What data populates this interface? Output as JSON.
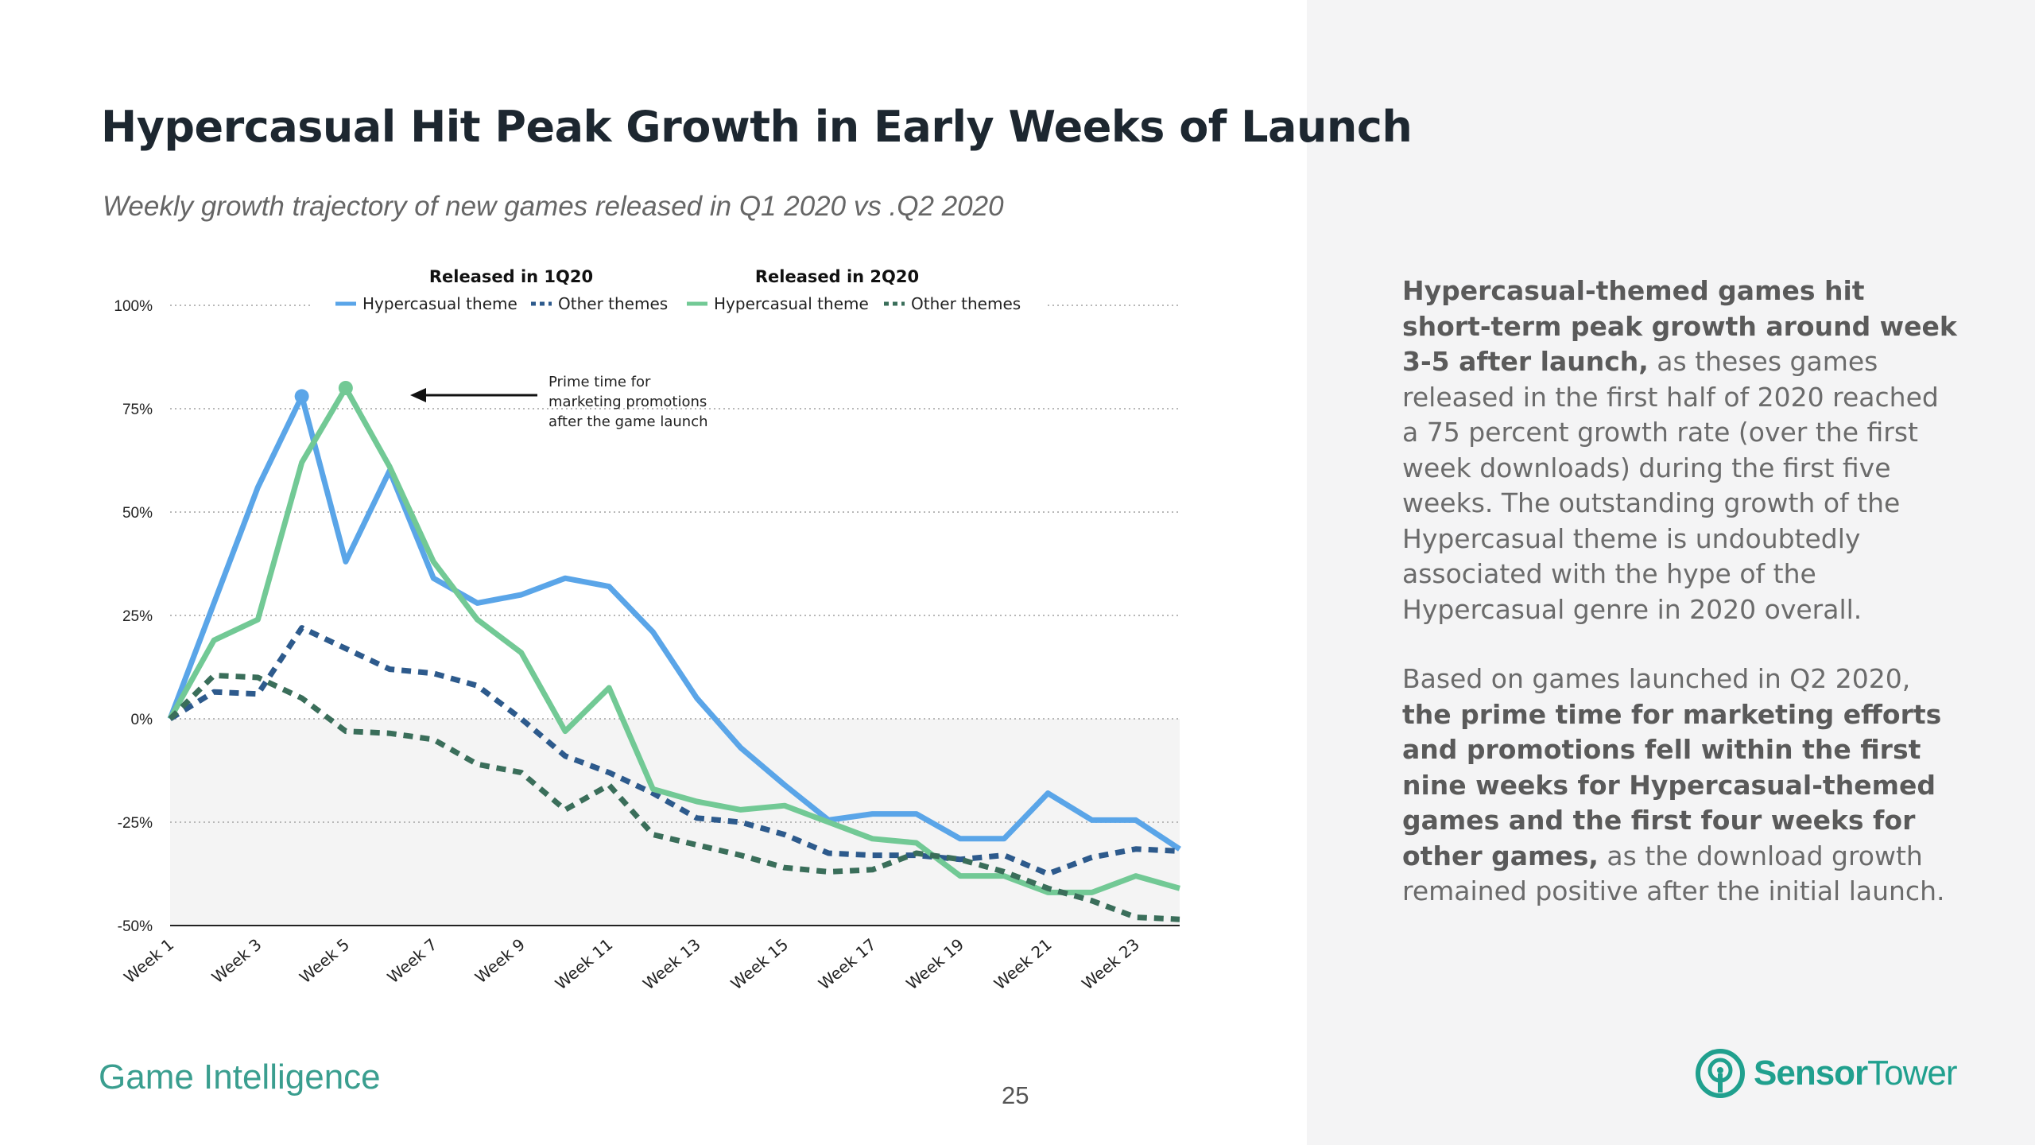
{
  "title": "Hypercasual Hit Peak Growth in Early Weeks of Launch",
  "subtitle": "Weekly growth trajectory of new games released in Q1 2020 vs .Q2 2020",
  "footer": {
    "section": "Game Intelligence",
    "page": "25"
  },
  "logo": {
    "strong": "Sensor",
    "light": "Tower"
  },
  "commentary": {
    "p1_bold": "Hypercasual-themed games hit short-term peak growth around week 3-5 after launch,",
    "p1_rest": " as theses games released in the first half of 2020 reached a 75 percent growth rate (over the first week downloads) during the first five weeks. The outstanding growth of the Hypercasual theme is undoubtedly associated with the hype of the Hypercasual genre in 2020 overall.",
    "p2_start": "Based on games launched in Q2 2020, ",
    "p2_bold": "the prime time for marketing efforts and promotions fell within the first nine weeks for Hypercasual-themed games and the first four weeks for other games,",
    "p2_rest": " as the download growth remained positive after the initial launch."
  },
  "chart_data": {
    "type": "line",
    "x": [
      "Week 1",
      "Week 2",
      "Week 3",
      "Week 4",
      "Week 5",
      "Week 6",
      "Week 7",
      "Week 8",
      "Week 9",
      "Week 10",
      "Week 11",
      "Week 12",
      "Week 13",
      "Week 14",
      "Week 15",
      "Week 16",
      "Week 17",
      "Week 18",
      "Week 19",
      "Week 20",
      "Week 21",
      "Week 22",
      "Week 23",
      "Week 24"
    ],
    "x_tick_labels": [
      "Week 1",
      "Week 3",
      "Week 5",
      "Week 7",
      "Week 9",
      "Week 11",
      "Week 13",
      "Week 15",
      "Week 17",
      "Week 19",
      "Week 21",
      "Week 23"
    ],
    "y_ticks": [
      "100%",
      "75%",
      "50%",
      "25%",
      "0%",
      "-25%",
      "-50%"
    ],
    "ylim": [
      -50,
      100
    ],
    "legend_groups": [
      "Released in 1Q20",
      "Released in 2Q20"
    ],
    "series": [
      {
        "name": "Hypercasual theme",
        "group": "Released in 1Q20",
        "color": "#5aa5e8",
        "style": "solid",
        "peak_week": 4,
        "values": [
          0,
          28,
          56,
          78,
          38,
          60,
          34,
          28,
          30,
          34,
          32,
          21,
          5,
          -7,
          -16,
          -24.5,
          -23,
          -23,
          -29,
          -29,
          -18,
          -24.5,
          -24.5,
          -31.5
        ]
      },
      {
        "name": "Other themes",
        "group": "Released in 1Q20",
        "color": "#2d5a8c",
        "style": "dashed",
        "values": [
          0,
          6.5,
          6,
          22,
          17,
          12,
          11,
          8,
          0,
          -9,
          -13,
          -18,
          -24,
          -25,
          -28,
          -32.5,
          -33,
          -33,
          -34,
          -33,
          -37.5,
          -33.5,
          -31.5,
          -32
        ]
      },
      {
        "name": "Hypercasual theme",
        "group": "Released in 2Q20",
        "color": "#72c995",
        "style": "solid",
        "peak_week": 5,
        "values": [
          0,
          19,
          24,
          62,
          80,
          61,
          38,
          24,
          16,
          -3,
          7.5,
          -17,
          -20,
          -22,
          -21,
          -25,
          -29,
          -30,
          -38,
          -38,
          -42,
          -42,
          -38,
          -41
        ]
      },
      {
        "name": "Other themes",
        "group": "Released in 2Q20",
        "color": "#3a6e5a",
        "style": "dashed",
        "values": [
          0,
          10.5,
          10,
          5,
          -3,
          -3.5,
          -5,
          -11,
          -13,
          -22,
          -16,
          -28,
          -30.5,
          -33,
          -36,
          -37,
          -36.5,
          -32.5,
          -34,
          -37,
          -41,
          -44,
          -48,
          -48.5
        ]
      }
    ],
    "annotation": "Prime time for marketing promotions after the game launch",
    "grid": "dotted horizontal",
    "legend_position": "top"
  }
}
